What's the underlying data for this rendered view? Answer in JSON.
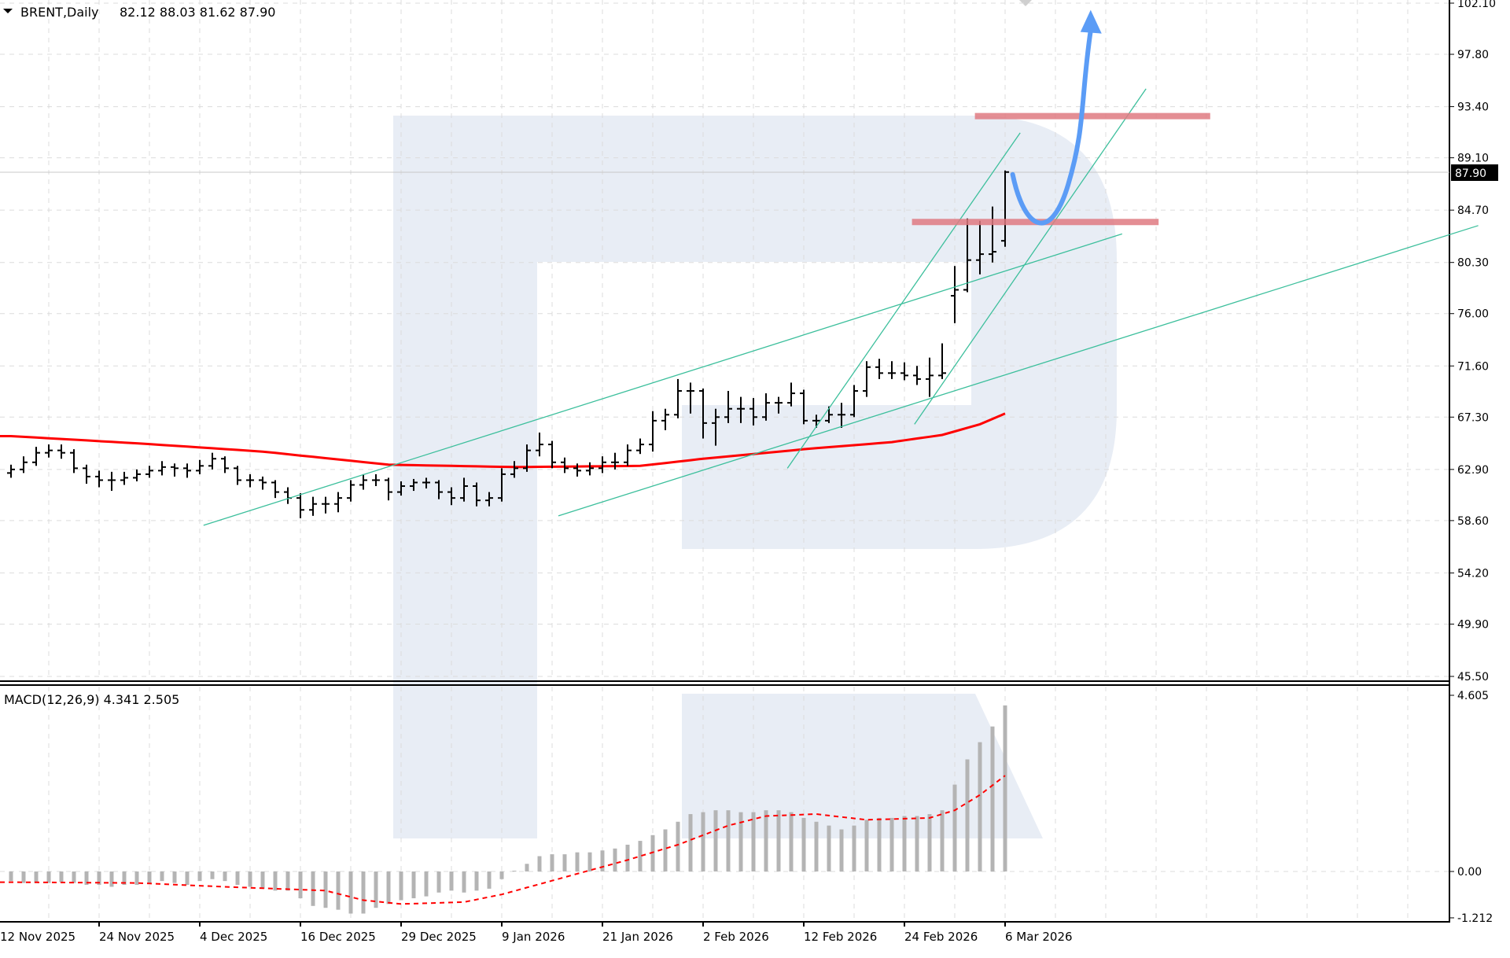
{
  "header": {
    "symbol_label": "BRENT,Daily",
    "ohlc_text": "82.12 88.03 81.62 87.90"
  },
  "macd_header": {
    "label": "MACD(12,26,9) 4.341 2.505"
  },
  "current_price_label": "87.90",
  "colors": {
    "bars": "#000000",
    "ma": "#ff0000",
    "trendlines": "#3cbf9c",
    "levels": "#e07b82",
    "arrow": "#5b9cf6",
    "histogram": "#b4b4b4",
    "signal": "#ff0000",
    "watermark": "#e8edf5"
  },
  "chart_data": [
    {
      "type": "ohlc",
      "title": "BRENT,Daily",
      "price_axis_labels": [
        "102.10",
        "97.80",
        "93.40",
        "89.10",
        "84.70",
        "80.30",
        "76.00",
        "71.60",
        "67.30",
        "62.90",
        "58.60",
        "54.20",
        "49.90",
        "45.50"
      ],
      "ylim": [
        45.5,
        102.1
      ],
      "date_labels": [
        {
          "bar": -1,
          "label": "12 Nov 2025"
        },
        {
          "bar": 7,
          "label": "24 Nov 2025"
        },
        {
          "bar": 15,
          "label": "4 Dec 2025"
        },
        {
          "bar": 23,
          "label": "16 Dec 2025"
        },
        {
          "bar": 31,
          "label": "29 Dec 2025"
        },
        {
          "bar": 39,
          "label": "9 Jan 2026"
        },
        {
          "bar": 47,
          "label": "21 Jan 2026"
        },
        {
          "bar": 55,
          "label": "2 Feb 2026"
        },
        {
          "bar": 63,
          "label": "12 Feb 2026"
        },
        {
          "bar": 71,
          "label": "24 Feb 2026"
        },
        {
          "bar": 79,
          "label": "6 Mar 2026"
        }
      ],
      "bars_ohlc": [
        [
          62.6,
          63.3,
          62.2,
          62.9
        ],
        [
          62.9,
          64.0,
          62.6,
          63.5
        ],
        [
          63.5,
          64.8,
          63.2,
          64.3
        ],
        [
          64.3,
          65.0,
          63.9,
          64.5
        ],
        [
          64.5,
          65.0,
          63.8,
          64.3
        ],
        [
          64.3,
          64.6,
          62.6,
          63.0
        ],
        [
          63.0,
          63.3,
          61.7,
          62.3
        ],
        [
          62.3,
          62.8,
          61.4,
          62.0
        ],
        [
          62.0,
          62.7,
          61.1,
          62.0
        ],
        [
          62.0,
          62.7,
          61.6,
          62.2
        ],
        [
          62.2,
          62.9,
          61.9,
          62.5
        ],
        [
          62.5,
          63.2,
          62.2,
          62.8
        ],
        [
          62.8,
          63.6,
          62.4,
          63.1
        ],
        [
          63.1,
          63.4,
          62.3,
          63.0
        ],
        [
          63.0,
          63.4,
          62.2,
          62.8
        ],
        [
          62.8,
          63.7,
          62.5,
          63.2
        ],
        [
          63.2,
          64.3,
          62.9,
          63.8
        ],
        [
          63.8,
          64.0,
          62.6,
          63.0
        ],
        [
          63.0,
          63.2,
          61.6,
          62.0
        ],
        [
          62.0,
          62.5,
          61.4,
          62.0
        ],
        [
          62.0,
          62.3,
          61.2,
          61.8
        ],
        [
          61.8,
          62.0,
          60.5,
          61.0
        ],
        [
          61.0,
          61.4,
          60.0,
          60.5
        ],
        [
          60.5,
          60.9,
          58.8,
          59.5
        ],
        [
          59.5,
          60.6,
          59.0,
          60.0
        ],
        [
          60.0,
          60.6,
          59.2,
          60.0
        ],
        [
          60.0,
          61.0,
          59.3,
          60.5
        ],
        [
          60.5,
          62.0,
          60.2,
          61.6
        ],
        [
          61.6,
          62.5,
          61.2,
          62.0
        ],
        [
          62.0,
          62.5,
          61.5,
          62.0
        ],
        [
          62.0,
          62.2,
          60.3,
          61.0
        ],
        [
          61.0,
          61.9,
          60.7,
          61.5
        ],
        [
          61.5,
          62.1,
          61.1,
          61.8
        ],
        [
          61.8,
          62.2,
          61.3,
          61.8
        ],
        [
          61.8,
          62.0,
          60.4,
          61.0
        ],
        [
          61.0,
          61.4,
          59.9,
          60.5
        ],
        [
          60.5,
          62.2,
          60.2,
          61.5
        ],
        [
          61.5,
          61.8,
          59.8,
          60.3
        ],
        [
          60.3,
          61.0,
          59.8,
          60.5
        ],
        [
          60.5,
          63.0,
          60.2,
          62.5
        ],
        [
          62.5,
          63.6,
          62.2,
          63.0
        ],
        [
          63.0,
          65.0,
          62.7,
          64.5
        ],
        [
          64.5,
          66.0,
          64.0,
          65.0
        ],
        [
          65.0,
          65.3,
          63.0,
          63.5
        ],
        [
          63.5,
          63.9,
          62.6,
          63.0
        ],
        [
          63.0,
          63.4,
          62.3,
          62.8
        ],
        [
          62.8,
          63.5,
          62.4,
          63.0
        ],
        [
          63.0,
          64.0,
          62.6,
          63.5
        ],
        [
          63.5,
          64.3,
          62.9,
          63.5
        ],
        [
          63.5,
          65.0,
          63.2,
          64.5
        ],
        [
          64.5,
          65.5,
          64.2,
          65.0
        ],
        [
          65.0,
          67.8,
          64.4,
          67.0
        ],
        [
          67.0,
          68.0,
          66.2,
          67.5
        ],
        [
          67.5,
          70.5,
          67.2,
          69.5
        ],
        [
          69.5,
          70.2,
          67.6,
          69.5
        ],
        [
          69.5,
          69.7,
          65.5,
          66.8
        ],
        [
          66.8,
          68.0,
          64.9,
          67.3
        ],
        [
          67.3,
          69.5,
          66.8,
          68.0
        ],
        [
          68.0,
          69.0,
          66.8,
          68.0
        ],
        [
          68.0,
          68.9,
          66.6,
          67.3
        ],
        [
          67.3,
          69.3,
          67.0,
          68.5
        ],
        [
          68.5,
          69.0,
          67.6,
          68.5
        ],
        [
          68.5,
          70.2,
          68.2,
          69.3
        ],
        [
          69.3,
          69.6,
          66.7,
          67.0
        ],
        [
          67.0,
          67.5,
          66.4,
          67.0
        ],
        [
          67.0,
          68.2,
          66.8,
          67.5
        ],
        [
          67.5,
          68.5,
          66.4,
          67.5
        ],
        [
          67.5,
          70.0,
          67.3,
          69.5
        ],
        [
          69.5,
          72.0,
          69.0,
          71.5
        ],
        [
          71.5,
          72.2,
          70.5,
          71.0
        ],
        [
          71.0,
          72.0,
          70.5,
          71.0
        ],
        [
          71.0,
          71.9,
          70.4,
          70.8
        ],
        [
          70.8,
          71.6,
          70.0,
          70.5
        ],
        [
          70.5,
          72.3,
          69.0,
          70.8
        ],
        [
          70.8,
          73.5,
          70.5,
          71.0
        ],
        [
          77.5,
          80.0,
          75.2,
          78.0
        ],
        [
          78.0,
          84.0,
          77.8,
          80.5
        ],
        [
          80.5,
          83.8,
          79.3,
          81.0
        ],
        [
          81.0,
          85.0,
          80.3,
          81.2
        ],
        [
          82.12,
          88.03,
          81.62,
          87.9
        ]
      ],
      "moving_average_points": [
        [
          0,
          65.7
        ],
        [
          10,
          65.1
        ],
        [
          20,
          64.4
        ],
        [
          30,
          63.3
        ],
        [
          40,
          63.1
        ],
        [
          50,
          63.2
        ],
        [
          55,
          63.8
        ],
        [
          63,
          64.6
        ],
        [
          70,
          65.2
        ],
        [
          74,
          65.8
        ],
        [
          77,
          66.7
        ],
        [
          79,
          67.6
        ]
      ],
      "trendlines": [
        {
          "from": [
            15.3,
            58.2
          ],
          "to": [
            88.3,
            82.7
          ]
        },
        {
          "from": [
            43.5,
            59.0
          ],
          "to": [
            116.6,
            83.4
          ]
        },
        {
          "from": [
            61.7,
            63.0
          ],
          "to": [
            80.2,
            91.2
          ]
        },
        {
          "from": [
            71.8,
            66.7
          ],
          "to": [
            90.2,
            94.9
          ]
        }
      ],
      "levels": [
        {
          "price": 92.6,
          "from_bar": 76.6,
          "to_bar": 95.3
        },
        {
          "price": 83.7,
          "from_bar": 71.6,
          "to_bar": 91.2
        }
      ],
      "forecast_arrow": [
        [
          79.6,
          87.7
        ],
        [
          82.0,
          84.6
        ],
        [
          84.0,
          86.8
        ],
        [
          85.0,
          94.0
        ],
        [
          85.8,
          101.0
        ]
      ],
      "current_price": 87.9
    },
    {
      "type": "bar+line",
      "title": "MACD(12,26,9)",
      "axis_labels": [
        "4.605",
        "0.00",
        "-1.212"
      ],
      "ylim": [
        -1.212,
        4.605
      ],
      "histogram": [
        -0.25,
        -0.3,
        -0.3,
        -0.3,
        -0.28,
        -0.3,
        -0.35,
        -0.35,
        -0.4,
        -0.35,
        -0.35,
        -0.3,
        -0.25,
        -0.3,
        -0.35,
        -0.25,
        -0.2,
        -0.25,
        -0.35,
        -0.4,
        -0.45,
        -0.5,
        -0.5,
        -0.7,
        -0.9,
        -0.95,
        -1.0,
        -1.1,
        -1.1,
        -0.95,
        -0.85,
        -0.75,
        -0.7,
        -0.65,
        -0.55,
        -0.5,
        -0.55,
        -0.5,
        -0.45,
        -0.2,
        0.02,
        0.2,
        0.4,
        0.45,
        0.45,
        0.5,
        0.5,
        0.55,
        0.6,
        0.7,
        0.8,
        0.95,
        1.1,
        1.3,
        1.5,
        1.55,
        1.6,
        1.6,
        1.55,
        1.55,
        1.6,
        1.6,
        1.55,
        1.4,
        1.3,
        1.2,
        1.1,
        1.2,
        1.35,
        1.4,
        1.4,
        1.45,
        1.45,
        1.5,
        1.6,
        2.27,
        2.93,
        3.38,
        3.79,
        4.341
      ],
      "signal_points": [
        [
          0,
          -0.28
        ],
        [
          10,
          -0.3
        ],
        [
          17,
          -0.4
        ],
        [
          25,
          -0.5
        ],
        [
          28,
          -0.75
        ],
        [
          31,
          -0.85
        ],
        [
          36,
          -0.8
        ],
        [
          39,
          -0.6
        ],
        [
          44,
          -0.15
        ],
        [
          49,
          0.3
        ],
        [
          53,
          0.7
        ],
        [
          57,
          1.2
        ],
        [
          60,
          1.45
        ],
        [
          64,
          1.5
        ],
        [
          68,
          1.35
        ],
        [
          73,
          1.4
        ],
        [
          75,
          1.6
        ],
        [
          77,
          2.0
        ],
        [
          79,
          2.505
        ]
      ],
      "macd_value": 4.341,
      "signal_value": 2.505
    }
  ]
}
